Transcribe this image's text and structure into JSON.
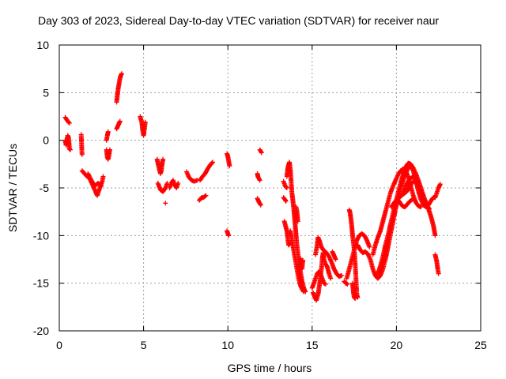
{
  "chart_data": {
    "type": "scatter",
    "title": "Day 303 of 2023, Sidereal Day-to-day VTEC variation (SDTVAR) for receiver naur",
    "xlabel": "GPS time / hours",
    "ylabel": "SDTVAR / TECUs",
    "xlim": [
      0,
      25
    ],
    "ylim": [
      -20,
      10
    ],
    "xticks": [
      0,
      5,
      10,
      15,
      20,
      25
    ],
    "xtick_labels": [
      "0",
      "5",
      "10",
      "15",
      "20",
      "25"
    ],
    "yticks": [
      10,
      5,
      0,
      -5,
      -10,
      -15,
      -20
    ],
    "ytick_labels": [
      "10",
      "5",
      "0",
      "-5",
      "-10",
      "-15",
      "-20"
    ],
    "grid": true,
    "marker": "plus",
    "color": "#ff0000",
    "segments": [
      [
        [
          0.35,
          2.4
        ],
        [
          0.5,
          2.0
        ],
        [
          0.6,
          1.8
        ]
      ],
      [
        [
          0.35,
          0.0
        ],
        [
          0.4,
          -0.5
        ],
        [
          0.5,
          0.5
        ],
        [
          0.55,
          0.3
        ],
        [
          0.6,
          -0.9
        ],
        [
          0.65,
          -1.0
        ]
      ],
      [
        [
          1.3,
          0.6
        ],
        [
          1.35,
          -1.5
        ]
      ],
      [
        [
          1.35,
          -3.2
        ],
        [
          1.5,
          -3.5
        ],
        [
          1.65,
          -3.8
        ],
        [
          1.8,
          -4.0
        ],
        [
          1.95,
          -4.6
        ],
        [
          2.1,
          -5.2
        ],
        [
          2.25,
          -5.8
        ],
        [
          2.4,
          -5.0
        ],
        [
          2.55,
          -4.3
        ],
        [
          2.6,
          -3.8
        ]
      ],
      [
        [
          1.7,
          -3.5
        ],
        [
          1.9,
          -4.2
        ],
        [
          2.1,
          -4.8
        ],
        [
          2.3,
          -4.5
        ],
        [
          2.5,
          -4.8
        ]
      ],
      [
        [
          2.8,
          -1.0
        ],
        [
          2.85,
          -1.8
        ],
        [
          2.9,
          -2.0
        ],
        [
          2.95,
          -1.5
        ],
        [
          3.0,
          -1.0
        ]
      ],
      [
        [
          2.8,
          0.0
        ],
        [
          2.85,
          0.5
        ],
        [
          2.9,
          0.9
        ]
      ],
      [
        [
          3.4,
          1.2
        ],
        [
          3.5,
          1.6
        ],
        [
          3.6,
          2.0
        ]
      ],
      [
        [
          3.4,
          4.0
        ],
        [
          3.45,
          4.8
        ],
        [
          3.5,
          5.5
        ],
        [
          3.55,
          6.0
        ],
        [
          3.6,
          6.5
        ],
        [
          3.65,
          6.8
        ],
        [
          3.7,
          7.0
        ]
      ],
      [
        [
          4.8,
          2.5
        ],
        [
          4.9,
          1.8
        ],
        [
          4.95,
          1.0
        ],
        [
          5.0,
          0.5
        ],
        [
          5.05,
          1.2
        ],
        [
          5.1,
          1.9
        ]
      ],
      [
        [
          5.8,
          -2.0
        ],
        [
          5.9,
          -2.8
        ],
        [
          6.0,
          -3.5
        ],
        [
          6.05,
          -3.2
        ],
        [
          6.1,
          -2.5
        ],
        [
          6.15,
          -2.0
        ]
      ],
      [
        [
          5.85,
          -4.5
        ],
        [
          6.0,
          -5.2
        ],
        [
          6.15,
          -5.4
        ],
        [
          6.3,
          -5.0
        ],
        [
          6.4,
          -4.5
        ]
      ],
      [
        [
          6.3,
          -6.6
        ]
      ],
      [
        [
          6.55,
          -5.0
        ],
        [
          6.65,
          -4.5
        ],
        [
          6.75,
          -4.2
        ],
        [
          6.85,
          -4.7
        ],
        [
          6.95,
          -5.0
        ],
        [
          7.05,
          -4.5
        ]
      ],
      [
        [
          7.55,
          -3.3
        ],
        [
          7.7,
          -3.9
        ],
        [
          7.85,
          -4.2
        ],
        [
          8.0,
          -4.3
        ],
        [
          8.2,
          -4.2
        ]
      ],
      [
        [
          8.3,
          -6.3
        ],
        [
          8.45,
          -6.0
        ],
        [
          8.55,
          -6.0
        ],
        [
          8.7,
          -5.8
        ]
      ],
      [
        [
          8.35,
          -4.2
        ],
        [
          8.5,
          -3.8
        ],
        [
          8.65,
          -3.5
        ],
        [
          8.8,
          -3.0
        ],
        [
          8.95,
          -2.6
        ],
        [
          9.1,
          -2.3
        ]
      ],
      [
        [
          9.95,
          -1.4
        ],
        [
          10.0,
          -1.7
        ],
        [
          10.05,
          -2.2
        ],
        [
          10.1,
          -2.7
        ]
      ],
      [
        [
          9.95,
          -9.5
        ],
        [
          10.0,
          -9.8
        ],
        [
          10.05,
          -10.0
        ]
      ],
      [
        [
          11.75,
          -3.5
        ],
        [
          11.8,
          -3.9
        ],
        [
          11.9,
          -4.2
        ]
      ],
      [
        [
          11.75,
          -6.1
        ],
        [
          11.85,
          -6.5
        ],
        [
          11.95,
          -6.8
        ]
      ],
      [
        [
          11.9,
          -1.0
        ],
        [
          12.0,
          -1.3
        ]
      ],
      [
        [
          13.3,
          -4.3
        ],
        [
          13.4,
          -4.8
        ],
        [
          13.5,
          -5.0
        ]
      ],
      [
        [
          13.3,
          -6.0
        ],
        [
          13.45,
          -6.4
        ]
      ],
      [
        [
          13.35,
          -8.5
        ],
        [
          13.5,
          -9.5
        ],
        [
          13.6,
          -11.0
        ],
        [
          13.7,
          -10.8
        ]
      ],
      [
        [
          13.5,
          -3.8
        ],
        [
          13.55,
          -3.0
        ],
        [
          13.6,
          -2.6
        ],
        [
          13.65,
          -2.3
        ],
        [
          13.7,
          -3.0
        ],
        [
          13.75,
          -4.2
        ],
        [
          13.8,
          -5.5
        ],
        [
          13.85,
          -6.2
        ],
        [
          13.9,
          -7.0
        ],
        [
          14.0,
          -9.0
        ],
        [
          14.1,
          -11.0
        ],
        [
          14.2,
          -12.5
        ],
        [
          14.3,
          -13.7
        ],
        [
          14.4,
          -14.8
        ],
        [
          14.5,
          -15.5
        ],
        [
          14.6,
          -15.9
        ]
      ],
      [
        [
          13.7,
          -9.5
        ],
        [
          13.8,
          -10.5
        ],
        [
          13.9,
          -11.5
        ],
        [
          14.0,
          -12.5
        ],
        [
          14.1,
          -13.5
        ],
        [
          14.2,
          -14.5
        ],
        [
          14.3,
          -15.2
        ],
        [
          14.4,
          -15.6
        ],
        [
          14.5,
          -15.9
        ]
      ],
      [
        [
          14.05,
          -7.0
        ],
        [
          14.1,
          -7.5
        ],
        [
          14.15,
          -8.5
        ]
      ],
      [
        [
          14.3,
          -12.4
        ],
        [
          14.35,
          -13.0
        ],
        [
          14.4,
          -13.5
        ],
        [
          14.45,
          -12.6
        ]
      ],
      [
        [
          15.0,
          -15.5
        ],
        [
          15.1,
          -15.0
        ],
        [
          15.2,
          -14.5
        ],
        [
          15.3,
          -14.0
        ],
        [
          15.4,
          -13.8
        ],
        [
          15.5,
          -14.0
        ],
        [
          15.6,
          -14.5
        ],
        [
          15.7,
          -15.0
        ],
        [
          15.8,
          -15.1
        ]
      ],
      [
        [
          15.05,
          -16.0
        ],
        [
          15.15,
          -16.4
        ],
        [
          15.25,
          -16.8
        ],
        [
          15.35,
          -16.2
        ],
        [
          15.45,
          -15.0
        ],
        [
          15.55,
          -13.5
        ],
        [
          15.6,
          -12.5
        ],
        [
          15.65,
          -11.8
        ],
        [
          15.7,
          -12.5
        ],
        [
          15.8,
          -13.0
        ],
        [
          15.9,
          -13.3
        ],
        [
          16.0,
          -14.0
        ],
        [
          16.1,
          -14.5
        ]
      ],
      [
        [
          15.2,
          -12.0
        ],
        [
          15.3,
          -11.0
        ],
        [
          15.35,
          -10.2
        ],
        [
          15.45,
          -10.6
        ],
        [
          15.55,
          -11.2
        ],
        [
          15.7,
          -11.6
        ],
        [
          15.85,
          -11.8
        ],
        [
          16.0,
          -12.2
        ],
        [
          16.15,
          -12.8
        ],
        [
          16.3,
          -13.5
        ],
        [
          16.45,
          -14.0
        ],
        [
          16.6,
          -14.3
        ],
        [
          16.75,
          -14.2
        ]
      ],
      [
        [
          16.2,
          -11.7
        ],
        [
          16.3,
          -12.1
        ],
        [
          16.4,
          -12.5
        ]
      ],
      [
        [
          16.9,
          -14.8
        ],
        [
          17.0,
          -15.0
        ],
        [
          17.1,
          -15.1
        ]
      ],
      [
        [
          17.2,
          -7.3
        ],
        [
          17.25,
          -7.6
        ],
        [
          17.3,
          -8.2
        ],
        [
          17.35,
          -9.0
        ],
        [
          17.4,
          -10.0
        ],
        [
          17.5,
          -11.5
        ],
        [
          17.55,
          -12.8
        ],
        [
          17.6,
          -14.5
        ],
        [
          17.65,
          -16.2
        ],
        [
          17.7,
          -16.5
        ]
      ],
      [
        [
          17.4,
          -15.0
        ],
        [
          17.45,
          -16.0
        ],
        [
          17.5,
          -16.5
        ],
        [
          17.55,
          -16.6
        ]
      ],
      [
        [
          17.05,
          -14.5
        ],
        [
          17.2,
          -13.5
        ],
        [
          17.35,
          -12.5
        ],
        [
          17.5,
          -11.5
        ],
        [
          17.65,
          -10.5
        ],
        [
          17.8,
          -10.0
        ],
        [
          17.95,
          -9.8
        ],
        [
          18.1,
          -10.0
        ],
        [
          18.25,
          -10.5
        ],
        [
          18.4,
          -11.2
        ]
      ],
      [
        [
          17.7,
          -11.0
        ],
        [
          17.85,
          -11.5
        ],
        [
          18.0,
          -11.8
        ],
        [
          18.15,
          -11.7
        ],
        [
          18.3,
          -11.9
        ],
        [
          18.45,
          -12.5
        ],
        [
          18.6,
          -13.5
        ],
        [
          18.75,
          -14.2
        ],
        [
          18.9,
          -14.5
        ],
        [
          19.05,
          -14.2
        ],
        [
          19.2,
          -13.5
        ],
        [
          19.35,
          -12.5
        ],
        [
          19.5,
          -11.2
        ],
        [
          19.65,
          -9.8
        ],
        [
          19.8,
          -8.5
        ],
        [
          19.95,
          -7.2
        ],
        [
          20.1,
          -6.0
        ],
        [
          20.25,
          -5.0
        ],
        [
          20.4,
          -4.2
        ],
        [
          20.55,
          -3.5
        ],
        [
          20.7,
          -2.9
        ],
        [
          20.85,
          -2.7
        ],
        [
          21.0,
          -3.2
        ],
        [
          21.15,
          -4.2
        ],
        [
          21.3,
          -5.3
        ],
        [
          21.45,
          -6.2
        ],
        [
          21.6,
          -6.8
        ],
        [
          21.75,
          -7.0
        ]
      ],
      [
        [
          18.6,
          -12.0
        ],
        [
          18.75,
          -11.0
        ],
        [
          18.9,
          -10.2
        ],
        [
          19.05,
          -9.5
        ],
        [
          19.2,
          -8.5
        ],
        [
          19.35,
          -7.5
        ],
        [
          19.5,
          -6.5
        ],
        [
          19.65,
          -5.5
        ],
        [
          19.8,
          -4.8
        ],
        [
          19.95,
          -4.2
        ],
        [
          20.1,
          -3.6
        ],
        [
          20.25,
          -3.2
        ],
        [
          20.4,
          -3.0
        ],
        [
          20.55,
          -3.2
        ],
        [
          20.7,
          -3.8
        ],
        [
          20.85,
          -4.8
        ],
        [
          21.0,
          -5.8
        ],
        [
          21.15,
          -6.5
        ],
        [
          21.3,
          -6.9
        ],
        [
          21.45,
          -7.0
        ]
      ],
      [
        [
          18.9,
          -14.0
        ],
        [
          19.05,
          -13.2
        ],
        [
          19.2,
          -12.2
        ],
        [
          19.35,
          -11.0
        ],
        [
          19.5,
          -10.0
        ],
        [
          19.65,
          -8.8
        ],
        [
          19.8,
          -7.7
        ],
        [
          19.95,
          -6.6
        ],
        [
          20.1,
          -5.5
        ],
        [
          20.25,
          -4.5
        ],
        [
          20.4,
          -3.6
        ],
        [
          20.55,
          -2.8
        ],
        [
          20.7,
          -2.4
        ],
        [
          20.85,
          -2.5
        ],
        [
          21.0,
          -2.9
        ],
        [
          21.15,
          -3.5
        ],
        [
          21.3,
          -4.2
        ],
        [
          21.45,
          -5.0
        ],
        [
          21.6,
          -5.8
        ],
        [
          21.75,
          -6.5
        ],
        [
          21.9,
          -7.2
        ],
        [
          22.05,
          -8.0
        ],
        [
          22.2,
          -9.0
        ],
        [
          22.3,
          -10.0
        ]
      ],
      [
        [
          19.7,
          -7.0
        ],
        [
          19.85,
          -6.6
        ],
        [
          20.0,
          -6.3
        ],
        [
          20.15,
          -6.0
        ],
        [
          20.3,
          -5.8
        ],
        [
          20.45,
          -5.6
        ],
        [
          20.6,
          -5.4
        ],
        [
          20.75,
          -5.0
        ],
        [
          20.9,
          -4.5
        ],
        [
          21.05,
          -4.3
        ],
        [
          21.2,
          -4.5
        ],
        [
          21.35,
          -5.0
        ],
        [
          21.5,
          -5.8
        ],
        [
          21.65,
          -6.5
        ],
        [
          21.8,
          -6.8
        ],
        [
          21.95,
          -7.2
        ]
      ],
      [
        [
          19.9,
          -6.5
        ],
        [
          20.05,
          -6.2
        ],
        [
          20.2,
          -6.5
        ],
        [
          20.35,
          -6.9
        ],
        [
          20.5,
          -7.0
        ],
        [
          20.65,
          -6.7
        ],
        [
          20.8,
          -6.4
        ],
        [
          20.95,
          -6.2
        ]
      ],
      [
        [
          20.2,
          -6.0
        ],
        [
          20.4,
          -5.5
        ],
        [
          20.55,
          -4.8
        ],
        [
          20.7,
          -4.3
        ],
        [
          20.85,
          -4.0
        ],
        [
          21.0,
          -3.8
        ]
      ],
      [
        [
          21.9,
          -6.8
        ],
        [
          22.0,
          -6.5
        ],
        [
          22.1,
          -6.2
        ],
        [
          22.2,
          -6.0
        ],
        [
          22.3,
          -6.0
        ],
        [
          22.4,
          -5.5
        ],
        [
          22.5,
          -5.0
        ],
        [
          22.6,
          -4.6
        ]
      ],
      [
        [
          22.3,
          -12.0
        ],
        [
          22.4,
          -12.8
        ],
        [
          22.45,
          -13.5
        ],
        [
          22.5,
          -14.0
        ]
      ]
    ]
  }
}
